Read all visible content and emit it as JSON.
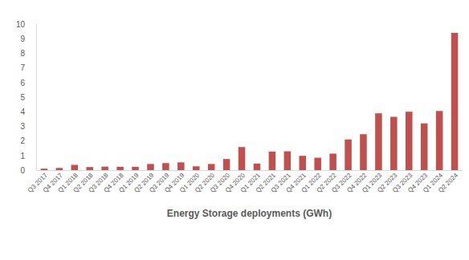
{
  "chart_data": {
    "type": "bar",
    "title": "Energy Storage deployments (GWh)",
    "categories": [
      "Q3 2017",
      "Q4 2017",
      "Q1 2018",
      "Q2 2018",
      "Q3 2018",
      "Q4 2018",
      "Q1 2019",
      "Q2 2019",
      "Q3 2019",
      "Q4 2019",
      "Q1 2020",
      "Q2 2020",
      "Q3 2020",
      "Q4 2020",
      "Q1 2021",
      "Q2 2021",
      "Q3 2021",
      "Q4 2021",
      "Q1 2022",
      "Q2 2022",
      "Q3 2022",
      "Q4 2022",
      "Q1 2023",
      "Q2 2023",
      "Q3 2023",
      "Q4 2023",
      "Q1 2024",
      "Q2 2024"
    ],
    "values": [
      0.1,
      0.15,
      0.36,
      0.21,
      0.24,
      0.23,
      0.23,
      0.42,
      0.48,
      0.53,
      0.26,
      0.42,
      0.76,
      1.58,
      0.45,
      1.27,
      1.29,
      0.98,
      0.85,
      1.13,
      2.1,
      2.46,
      3.89,
      3.65,
      4.0,
      3.2,
      4.05,
      9.4
    ],
    "color": "#c0504d",
    "ylim": [
      0,
      10
    ],
    "yticks": [
      0,
      1,
      2,
      3,
      4,
      5,
      6,
      7,
      8,
      9,
      10
    ],
    "grid": false
  }
}
